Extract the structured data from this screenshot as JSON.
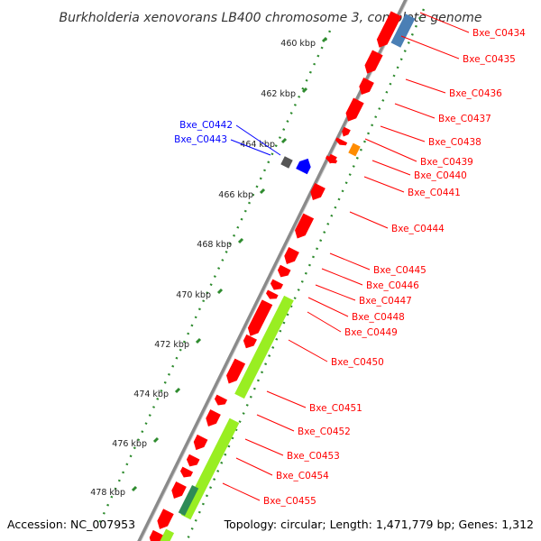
{
  "header": {
    "title": "Burkholderia xenovorans LB400 chromosome 3, complete genome"
  },
  "footer": {
    "accession": "Accession: NC_007953",
    "topology": "Topology: circular; Length: 1,471,779 bp; Genes: 1,312"
  },
  "ticks": [
    "460 kbp",
    "462 kbp",
    "464 kbp",
    "466 kbp",
    "468 kbp",
    "470 kbp",
    "472 kbp",
    "474 kbp",
    "476 kbp",
    "478 kbp"
  ],
  "genes": [
    {
      "name": "Bxe_C0434",
      "color": "#ff0000"
    },
    {
      "name": "Bxe_C0435",
      "color": "#ff0000"
    },
    {
      "name": "Bxe_C0436",
      "color": "#ff0000"
    },
    {
      "name": "Bxe_C0437",
      "color": "#ff0000"
    },
    {
      "name": "Bxe_C0438",
      "color": "#ff0000"
    },
    {
      "name": "Bxe_C0439",
      "color": "#ff0000"
    },
    {
      "name": "Bxe_C0440",
      "color": "#ff0000"
    },
    {
      "name": "Bxe_C0441",
      "color": "#ff0000"
    },
    {
      "name": "Bxe_C0442",
      "color": "#0000ff"
    },
    {
      "name": "Bxe_C0443",
      "color": "#0000ff"
    },
    {
      "name": "Bxe_C0444",
      "color": "#ff0000"
    },
    {
      "name": "Bxe_C0445",
      "color": "#ff0000"
    },
    {
      "name": "Bxe_C0446",
      "color": "#ff0000"
    },
    {
      "name": "Bxe_C0447",
      "color": "#ff0000"
    },
    {
      "name": "Bxe_C0448",
      "color": "#ff0000"
    },
    {
      "name": "Bxe_C0449",
      "color": "#ff0000"
    },
    {
      "name": "Bxe_C0450",
      "color": "#ff0000"
    },
    {
      "name": "Bxe_C0451",
      "color": "#ff0000"
    },
    {
      "name": "Bxe_C0452",
      "color": "#ff0000"
    },
    {
      "name": "Bxe_C0453",
      "color": "#ff0000"
    },
    {
      "name": "Bxe_C0454",
      "color": "#ff0000"
    },
    {
      "name": "Bxe_C0455",
      "color": "#ff0000"
    }
  ],
  "colors": {
    "backbone": "#777777",
    "forward_cds": "#ff0000",
    "reverse_cds": "#ff0000",
    "rna": "#0000ff",
    "misc_feature": "#99ee22",
    "tick_dots": "#2e8b2e",
    "blue_feature": "#4a7fb5",
    "orange_feature": "#ff8c00",
    "dark_green_feature": "#2e8b57"
  }
}
